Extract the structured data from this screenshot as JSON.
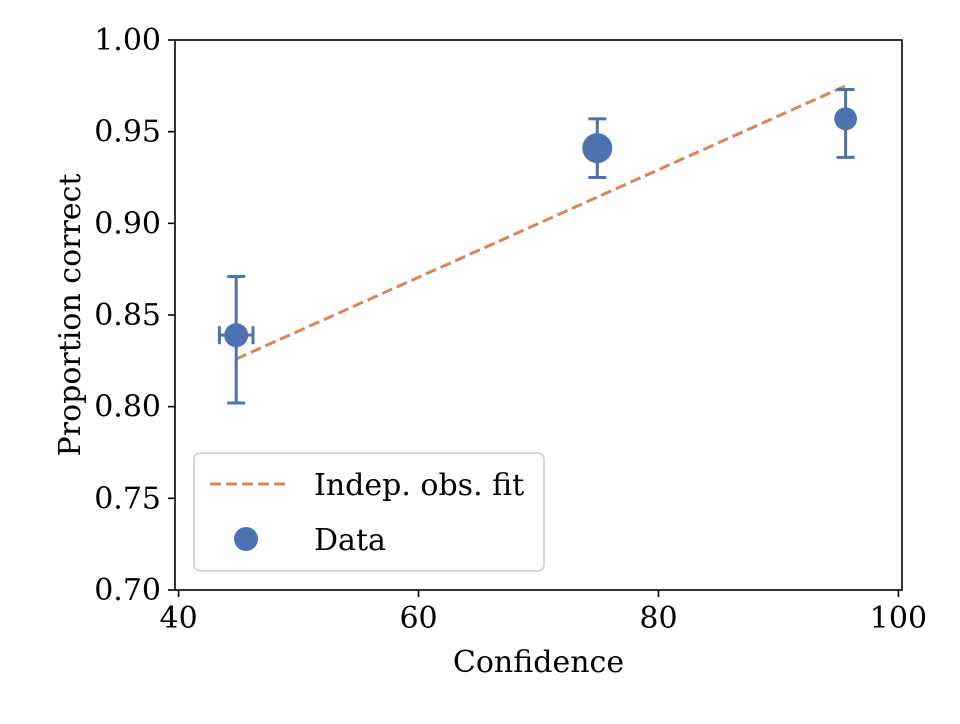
{
  "chart_data": {
    "type": "scatter",
    "title": "",
    "xlabel": "Confidence",
    "ylabel": "Proportion correct",
    "xlim": [
      39.7,
      100.3
    ],
    "ylim": [
      0.7,
      1.0
    ],
    "xticks": [
      40,
      60,
      80,
      100
    ],
    "xtick_labels": [
      "40",
      "60",
      "80",
      "100"
    ],
    "yticks": [
      0.7,
      0.75,
      0.8,
      0.85,
      0.9,
      0.95,
      1.0
    ],
    "ytick_labels": [
      "0.70",
      "0.75",
      "0.80",
      "0.85",
      "0.90",
      "0.95",
      "1.00"
    ],
    "grid": false,
    "legend_position": "lower-left",
    "series": [
      {
        "name": "Indep. obs. fit",
        "kind": "line",
        "style": "dashed",
        "color": "#dd8452",
        "x": [
          44.8,
          95.6
        ],
        "y": [
          0.826,
          0.975
        ]
      },
      {
        "name": "Data",
        "kind": "scatter",
        "color": "#4c72b0",
        "points": [
          {
            "x": 44.8,
            "y": 0.839,
            "yerr": [
              0.802,
              0.871
            ],
            "xerr": [
              43.4,
              46.2
            ],
            "size": 1.0
          },
          {
            "x": 74.9,
            "y": 0.941,
            "yerr": [
              0.925,
              0.957
            ],
            "size": 1.25
          },
          {
            "x": 95.6,
            "y": 0.957,
            "yerr": [
              0.936,
              0.973
            ],
            "size": 0.95
          }
        ]
      }
    ]
  }
}
